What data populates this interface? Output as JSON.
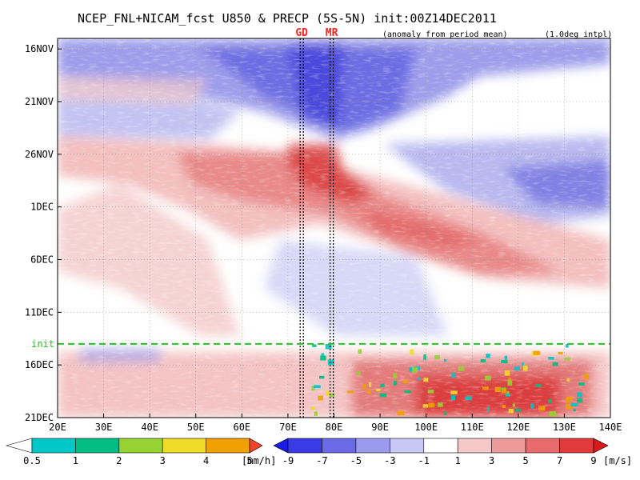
{
  "chart_data": {
    "type": "heatmap",
    "title": "NCEP_FNL+NICAM_fcst U850 & PRECP (5S-5N) init:00Z14DEC2011",
    "subtitle": "(anomaly from period mean)",
    "note": "(1.0deg intpl)",
    "x_range": [
      20,
      140
    ],
    "x_ticks": [
      "20E",
      "30E",
      "40E",
      "50E",
      "60E",
      "70E",
      "80E",
      "90E",
      "100E",
      "110E",
      "120E",
      "130E",
      "140E"
    ],
    "y_range": [
      "15NOV2011",
      "21DEC2011"
    ],
    "y_ticks": [
      {
        "label": "16NOV",
        "date": "2011-11-16"
      },
      {
        "label": "21NOV",
        "date": "2011-11-21"
      },
      {
        "label": "26NOV",
        "date": "2011-11-26"
      },
      {
        "label": "1DEC",
        "date": "2011-12-01"
      },
      {
        "label": "6DEC",
        "date": "2011-12-06"
      },
      {
        "label": "11DEC",
        "date": "2011-12-11"
      },
      {
        "label": "16DEC",
        "date": "2011-12-16"
      },
      {
        "label": "21DEC",
        "date": "2011-12-21"
      }
    ],
    "markers": [
      {
        "label": "GD",
        "lon": 73
      },
      {
        "label": "MR",
        "lon": 79.5
      }
    ],
    "init_line": {
      "label": "init",
      "date": "2011-12-14"
    },
    "precip_colorbar": {
      "unit": "[mm/h]",
      "levels": [
        "0.5",
        "1",
        "2",
        "3",
        "4",
        "5"
      ],
      "colors": [
        "#ffffff",
        "#00c8c8",
        "#00be82",
        "#96d232",
        "#f0dc28",
        "#f0a000",
        "#f04628"
      ]
    },
    "wind_colorbar": {
      "unit": "[m/s]",
      "levels": [
        "-9",
        "-7",
        "-5",
        "-3",
        "-1",
        "1",
        "3",
        "5",
        "7",
        "9"
      ],
      "colors": [
        "#1a1ae6",
        "#3a3ae6",
        "#6a6ae6",
        "#9a9aee",
        "#c8c8f6",
        "#ffffff",
        "#f6c8c8",
        "#ee9a9a",
        "#e86a6a",
        "#e03a3a",
        "#d81a1a"
      ]
    }
  }
}
